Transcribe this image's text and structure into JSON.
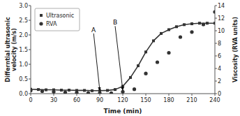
{
  "chart_data": {
    "type": "scatter",
    "x_label": "Time (min)",
    "y_label": "Differntial ultrasonic\nvelocity (m/s)",
    "y2_label": "Viscosity (RVA units)",
    "xlim": [
      0,
      240
    ],
    "xticks": [
      0,
      30,
      60,
      90,
      120,
      150,
      180,
      210,
      240
    ],
    "ylim": [
      0,
      3
    ],
    "yticks": [
      {
        "value": 0.0,
        "label": "0.0"
      },
      0.5,
      {
        "value": 1.0,
        "label": "1.0"
      },
      1.5,
      {
        "value": 2.0,
        "label": "2.0"
      },
      2.5,
      {
        "value": 3.0,
        "label": "3.0"
      }
    ],
    "y2lim": [
      0,
      14
    ],
    "y2ticks": [
      0,
      2,
      4,
      6,
      8,
      10,
      12,
      14
    ],
    "grid": false,
    "legend": "upper left",
    "series": [
      {
        "name": "Ultrasonic",
        "type": "line",
        "marker": "square",
        "color": "#333333",
        "x": [
          0,
          10,
          20,
          30,
          40,
          50,
          60,
          70,
          80,
          90,
          100,
          110,
          120,
          130,
          140,
          150,
          160,
          170,
          180,
          190,
          200,
          210,
          220,
          230,
          240
        ],
        "values": [
          0.15,
          0.14,
          0.13,
          0.13,
          0.12,
          0.12,
          0.11,
          0.11,
          0.1,
          0.1,
          0.11,
          0.14,
          0.25,
          0.55,
          0.95,
          1.42,
          1.8,
          2.05,
          2.18,
          2.28,
          2.35,
          2.38,
          2.4,
          2.4,
          2.4
        ]
      },
      {
        "name": "RVA",
        "type": "scatter",
        "marker": "circle",
        "color": "#333333",
        "axis": "y2",
        "x": [
          0,
          15,
          30,
          45,
          60,
          75,
          90,
          105,
          120,
          135,
          150,
          165,
          180,
          195,
          210,
          225,
          240
        ],
        "values": [
          0.5,
          0.4,
          0.3,
          0.2,
          0.15,
          0.1,
          0.08,
          0.08,
          0.3,
          0.7,
          3.2,
          5.0,
          6.5,
          9.0,
          9.8,
          11.0,
          13.0
        ]
      }
    ],
    "annotations": [
      {
        "text": "A",
        "x": 82,
        "y": 2.1,
        "arrow_x": 90,
        "arrow_y": 0.11
      },
      {
        "text": "B",
        "x": 110,
        "y": 2.35,
        "arrow_x": 120,
        "arrow_y": 0.11
      }
    ]
  }
}
